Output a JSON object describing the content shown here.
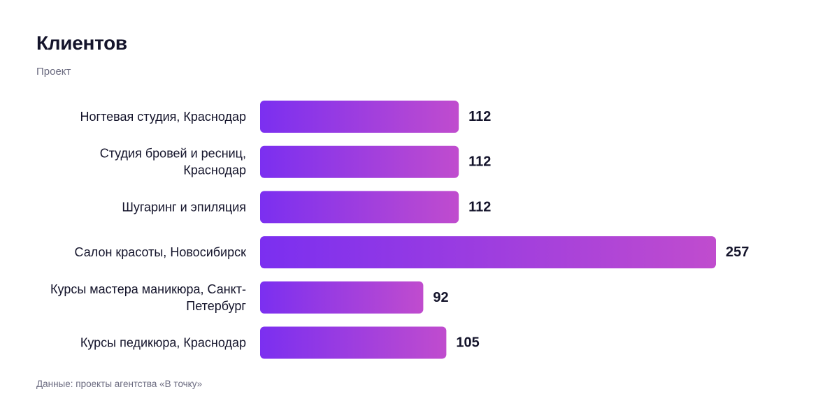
{
  "header": {
    "title": "Клиентов",
    "subtitle": "Проект"
  },
  "footer": {
    "note": "Данные: проекты агентства «В точку»"
  },
  "colors": {
    "bar_gradient_start": "#7b2ff0",
    "bar_gradient_end": "#c04cce",
    "text": "#14142b",
    "muted": "#6b6b80"
  },
  "chart_data": {
    "type": "bar",
    "orientation": "horizontal",
    "title": "Клиентов",
    "subtitle": "Проект",
    "categories": [
      [
        "Ногтевая студия, Краснодар"
      ],
      [
        "Студия бровей и ресниц,",
        "Краснодар"
      ],
      [
        "Шугаринг и эпиляция"
      ],
      [
        "Салон красоты, Новосибирск"
      ],
      [
        "Курсы мастера маникюра, Санкт-",
        "Петербург"
      ],
      [
        "Курсы педикюра, Краснодар"
      ]
    ],
    "values": [
      112,
      112,
      112,
      257,
      92,
      105
    ],
    "xlim": [
      0,
      257
    ],
    "grid": false,
    "legend": "none"
  }
}
